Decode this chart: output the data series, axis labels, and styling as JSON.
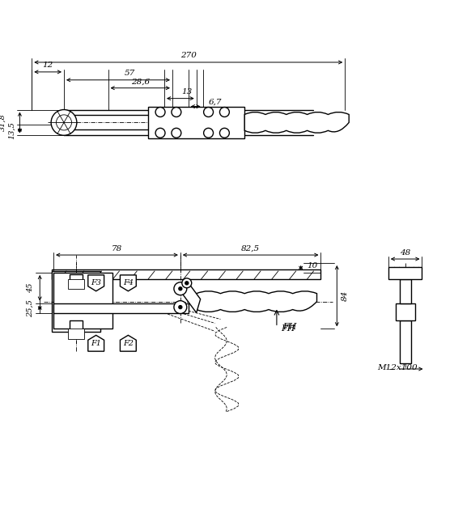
{
  "bg_color": "#ffffff",
  "line_color": "#000000",
  "dim_color": "#000000",
  "thin_lw": 0.6,
  "med_lw": 1.0,
  "thick_lw": 1.5,
  "figsize": [
    5.82,
    6.55
  ],
  "dpi": 100,
  "annotations": {
    "top_view": {
      "dim_25_5": "25,5",
      "dim_45": "45",
      "dim_78": "78",
      "dim_82_5": "82,5",
      "dim_10": "10",
      "dim_84": "84",
      "dim_FH": "FH",
      "dim_F1": "F1",
      "dim_F2": "F2",
      "dim_F3": "F3",
      "dim_F4": "F4",
      "dim_M12x100": "M12x100",
      "dim_48": "48"
    },
    "bottom_view": {
      "dim_13_5": "13,5",
      "dim_31_8": "31,8",
      "dim_6_7": "6,7",
      "dim_13": "13",
      "dim_28_6": "28,6",
      "dim_12": "12",
      "dim_57": "57",
      "dim_270": "270"
    }
  }
}
